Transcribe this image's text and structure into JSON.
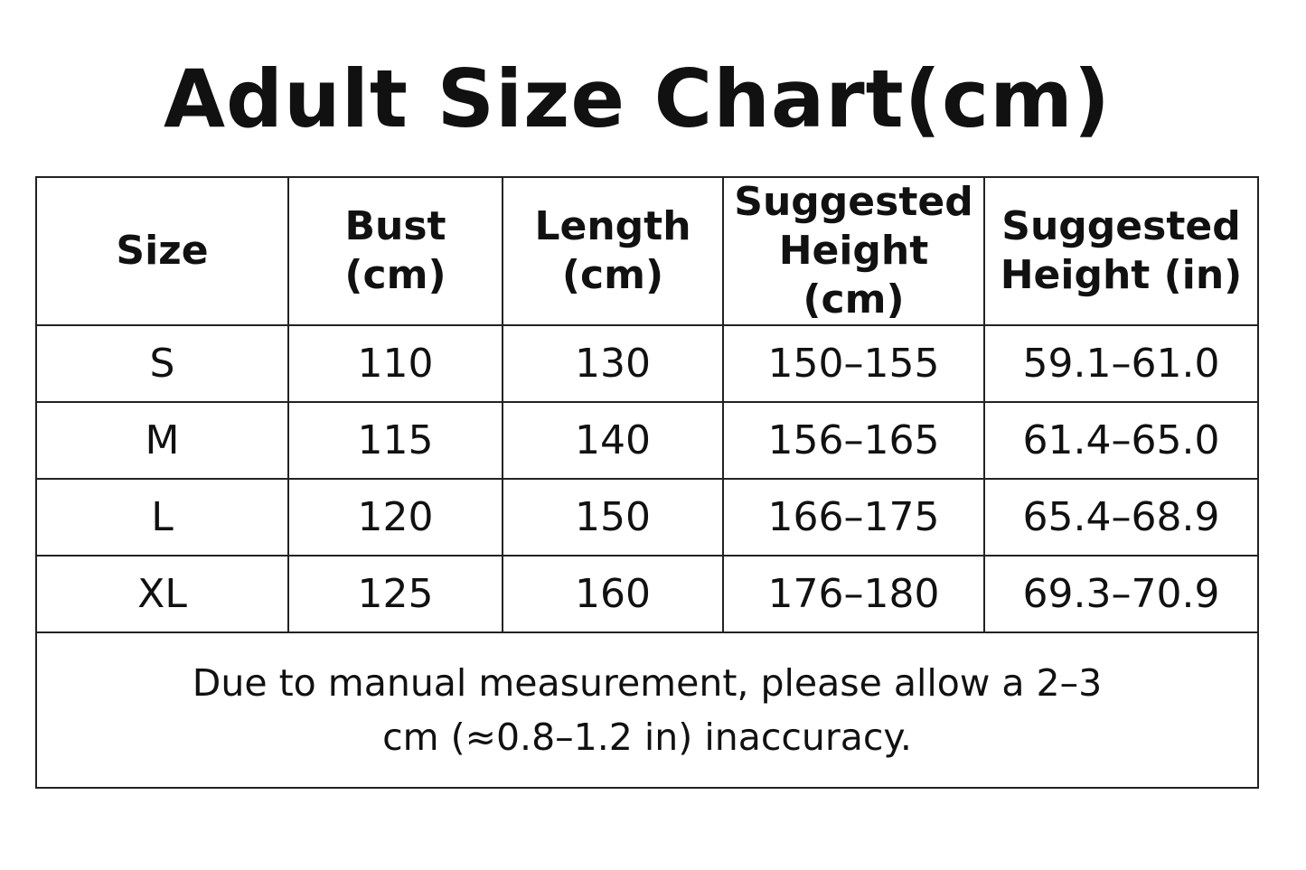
{
  "title": "Adult Size Chart(cm)",
  "table": {
    "headers": [
      [
        "Size"
      ],
      [
        "Bust",
        "(cm)"
      ],
      [
        "Length",
        "(cm)"
      ],
      [
        "Suggested",
        "Height (cm)"
      ],
      [
        "Suggested",
        "Height (in)"
      ]
    ],
    "rows": [
      [
        "S",
        "110",
        "130",
        "150–155",
        "59.1–61.0"
      ],
      [
        "M",
        "115",
        "140",
        "156–165",
        "61.4–65.0"
      ],
      [
        "L",
        "120",
        "150",
        "166–175",
        "65.4–68.9"
      ],
      [
        "XL",
        "125",
        "160",
        "176–180",
        "69.3–70.9"
      ]
    ],
    "note": [
      "Due to manual measurement, please allow a 2–3",
      "cm (≈0.8–1.2 in) inaccuracy."
    ]
  }
}
